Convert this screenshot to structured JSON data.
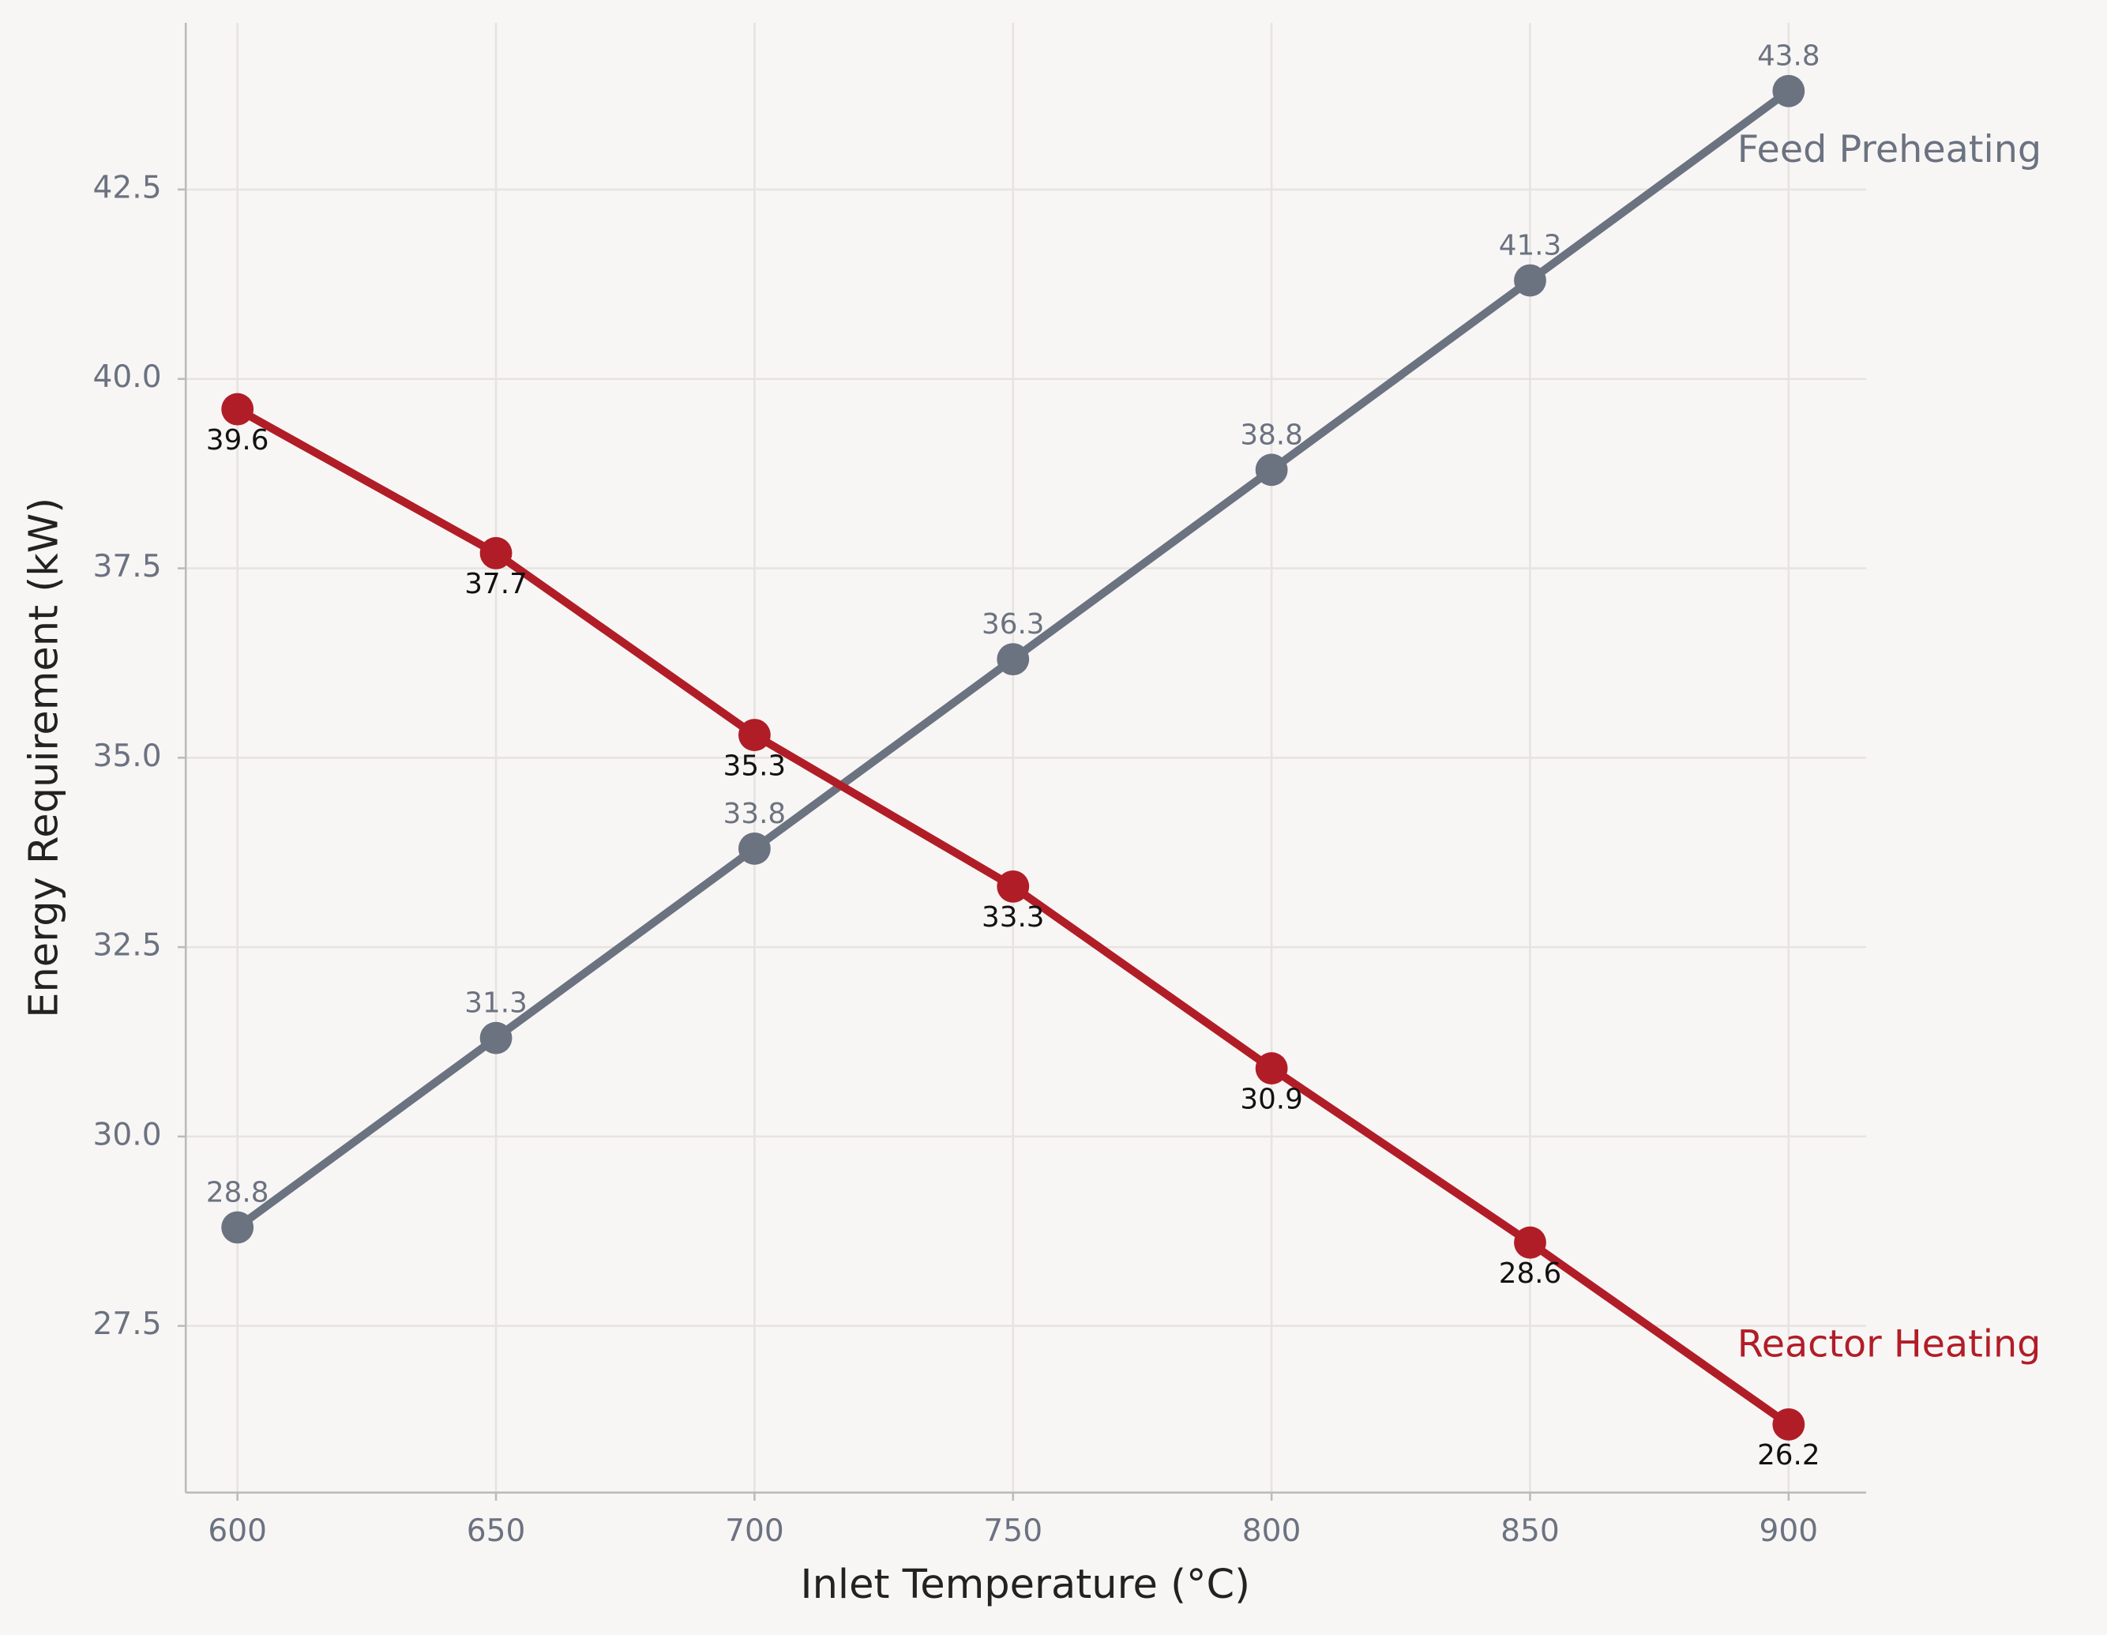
{
  "chart_data": {
    "type": "line",
    "x_label": "Inlet Temperature (°C)",
    "y_label": "Energy Requirement (kW)",
    "x": [
      600,
      650,
      700,
      750,
      800,
      850,
      900
    ],
    "series": [
      {
        "name": "Feed Preheating",
        "color": "#6b7280",
        "values": [
          28.8,
          31.3,
          33.8,
          36.3,
          38.8,
          41.3,
          43.8
        ]
      },
      {
        "name": "Reactor Heating",
        "color": "#b11d27",
        "values": [
          39.6,
          37.7,
          35.3,
          33.3,
          30.9,
          28.6,
          26.2
        ]
      }
    ],
    "xlim": [
      590,
      915
    ],
    "ylim": [
      25.3,
      44.7
    ],
    "xticks": [
      600,
      650,
      700,
      750,
      800,
      850,
      900
    ],
    "yticks": [
      27.5,
      {
        "value": 30,
        "label": "30.0"
      },
      32.5,
      {
        "value": 35,
        "label": "35.0"
      },
      37.5,
      {
        "value": 40,
        "label": "40.0"
      },
      42.5
    ],
    "grid": true
  }
}
